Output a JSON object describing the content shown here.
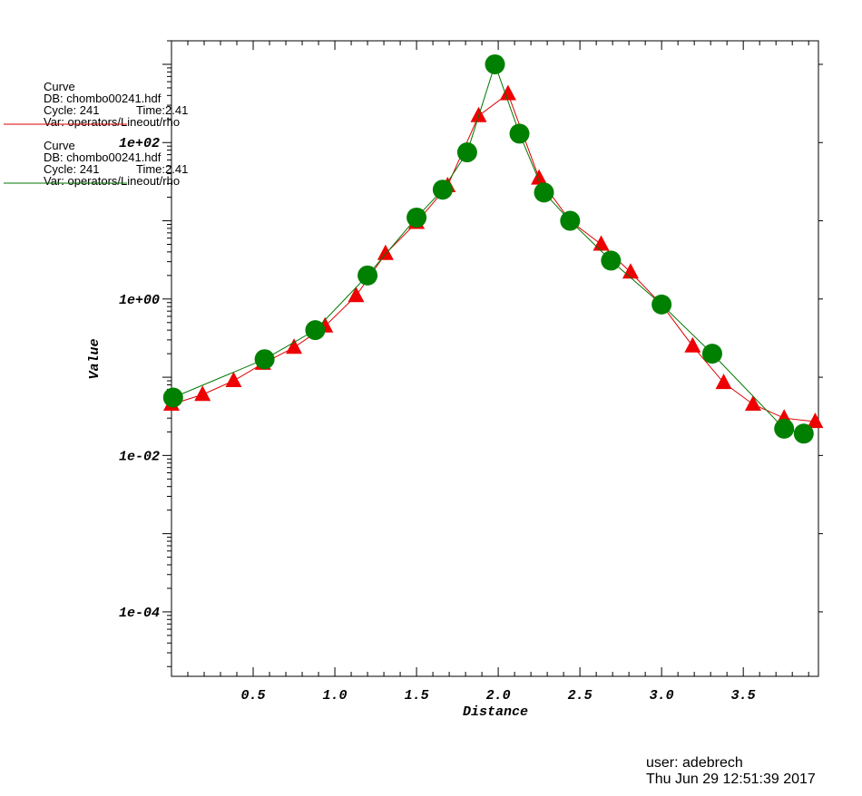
{
  "legend": [
    {
      "label": "Curve",
      "db": "DB: chombo00241.hdf",
      "cycle": "Cycle: 241",
      "time": "Time:2.41",
      "var": "Var: operators/Lineout/rho",
      "color": "#dd0000"
    },
    {
      "label": "Curve",
      "db": "DB: chombo00241.hdf",
      "cycle": "Cycle: 241",
      "time": "Time:2.41",
      "var": "Var: operators/Lineout/rho",
      "color": "#007700"
    }
  ],
  "footer": {
    "user": "user: adebrech",
    "date": "Thu Jun 29 12:51:39 2017"
  },
  "chart_data": {
    "type": "line",
    "xlabel": "Distance",
    "ylabel": "Value",
    "yscale": "log",
    "xlim": [
      0.0,
      3.96
    ],
    "ylim": [
      1.5e-05,
      2000
    ],
    "x_ticks": [
      0.5,
      1.0,
      1.5,
      2.0,
      2.5,
      3.0,
      3.5
    ],
    "x_tick_labels": [
      "0.5",
      "1.0",
      "1.5",
      "2.0",
      "2.5",
      "3.0",
      "3.5"
    ],
    "y_ticks": [
      0.0001,
      0.01,
      1,
      100
    ],
    "y_tick_labels": [
      "1e-04",
      "1e-02",
      "1e+00",
      "1e+02"
    ],
    "series": [
      {
        "color": "#dd0000",
        "marker": "triangle",
        "x": [
          0.0,
          0.19,
          0.38,
          0.56,
          0.75,
          0.94,
          1.13,
          1.31,
          1.5,
          1.69,
          1.88,
          2.06,
          2.25,
          2.44,
          2.63,
          2.81,
          3.0,
          3.19,
          3.38,
          3.56,
          3.75,
          3.94
        ],
        "y": [
          0.045,
          0.06,
          0.09,
          0.15,
          0.24,
          0.45,
          1.1,
          3.8,
          9.5,
          28,
          220,
          420,
          35,
          10,
          5.0,
          2.2,
          0.85,
          0.25,
          0.085,
          0.045,
          0.03,
          0.027
        ]
      },
      {
        "color": "#007700",
        "marker": "circle",
        "x": [
          0.01,
          0.57,
          0.88,
          1.2,
          1.5,
          1.66,
          1.81,
          1.98,
          2.13,
          2.28,
          2.44,
          2.69,
          3.0,
          3.31,
          3.75,
          3.87
        ],
        "y": [
          0.055,
          0.17,
          0.4,
          2.0,
          11.0,
          25.0,
          75.0,
          1000.0,
          130.0,
          23.0,
          10.0,
          3.1,
          0.85,
          0.2,
          0.022,
          0.019
        ]
      }
    ]
  }
}
